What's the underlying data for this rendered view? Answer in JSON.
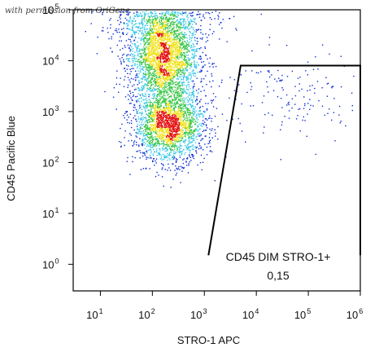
{
  "watermark": "with permission from OriGene",
  "colors": {
    "density_low": "#0b2bd4",
    "density_mid": "#39c8e8",
    "density_mid2": "#38c646",
    "density_high": "#f1e21a",
    "density_peak": "#e41414",
    "gate": "#000000",
    "axis": "#000000"
  },
  "chart_data": {
    "type": "scatter",
    "title": "",
    "xlabel": "STRO-1 APC",
    "ylabel": "CD45 Pacific Blue",
    "x_scale": "log",
    "y_scale": "log",
    "xlim": [
      3,
      1000000
    ],
    "ylim": [
      0.3,
      100000
    ],
    "x_ticks": [
      {
        "base": "10",
        "exp": "1",
        "value": 10
      },
      {
        "base": "10",
        "exp": "2",
        "value": 100
      },
      {
        "base": "10",
        "exp": "3",
        "value": 1000
      },
      {
        "base": "10",
        "exp": "4",
        "value": 10000
      },
      {
        "base": "10",
        "exp": "5",
        "value": 100000
      },
      {
        "base": "10",
        "exp": "6",
        "value": 1000000
      }
    ],
    "y_ticks": [
      {
        "base": "10",
        "exp": "0",
        "value": 1
      },
      {
        "base": "10",
        "exp": "1",
        "value": 10
      },
      {
        "base": "10",
        "exp": "2",
        "value": 100
      },
      {
        "base": "10",
        "exp": "3",
        "value": 1000
      },
      {
        "base": "10",
        "exp": "4",
        "value": 10000
      },
      {
        "base": "10",
        "exp": "5",
        "value": 100000
      }
    ],
    "populations": [
      {
        "name": "",
        "x_center": 160,
        "y_center": 12000,
        "x_spread_decades": 0.34,
        "y_spread_decades": 0.45,
        "count": 2600
      },
      {
        "name": "",
        "x_center": 210,
        "y_center": 550,
        "x_spread_decades": 0.34,
        "y_spread_decades": 0.36,
        "count": 2200
      },
      {
        "name": "",
        "x_center": 130,
        "y_center": 80000,
        "x_spread_decades": 0.55,
        "y_spread_decades": 0.25,
        "count": 700
      },
      {
        "name": "",
        "x_center": 50000,
        "y_center": 2000,
        "x_spread_decades": 0.7,
        "y_spread_decades": 0.45,
        "count": 160
      }
    ],
    "gate": {
      "label": "CD45 DIM STRO-1+",
      "value": "0,15",
      "vertices": [
        [
          1200,
          1.5
        ],
        [
          5000,
          8000
        ],
        [
          1000000,
          8000
        ],
        [
          1000000,
          1.5
        ]
      ]
    }
  }
}
